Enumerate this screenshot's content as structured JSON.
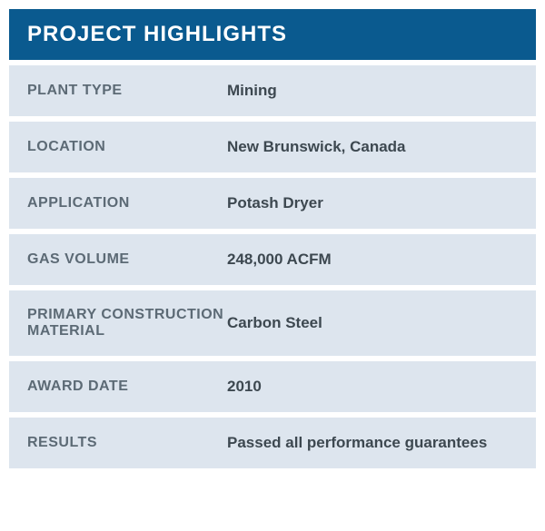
{
  "title": "PROJECT HIGHLIGHTS",
  "colors": {
    "header_bg": "#0a5a8f",
    "header_text": "#ffffff",
    "row_bg": "#dde5ee",
    "label_color": "#5c6a75",
    "value_color": "#3d4850",
    "page_bg": "#ffffff"
  },
  "rows": [
    {
      "label": "PLANT TYPE",
      "value": "Mining"
    },
    {
      "label": "LOCATION",
      "value": "New Brunswick, Canada"
    },
    {
      "label": "APPLICATION",
      "value": "Potash Dryer"
    },
    {
      "label": "GAS VOLUME",
      "value": "248,000 ACFM"
    },
    {
      "label": "PRIMARY CONSTRUCTION MATERIAL",
      "value": "Carbon Steel"
    },
    {
      "label": "AWARD DATE",
      "value": "2010"
    },
    {
      "label": "RESULTS",
      "value": "Passed all performance guarantees"
    }
  ]
}
